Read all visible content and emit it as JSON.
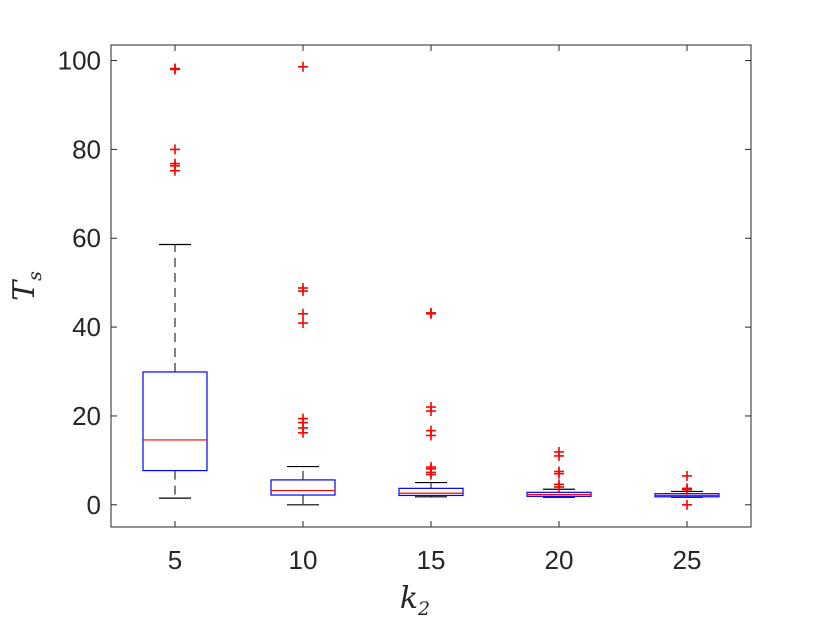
{
  "chart_data": {
    "type": "boxplot",
    "xlabel": {
      "base": "k",
      "sub": "2"
    },
    "ylabel": {
      "base": "T",
      "sub": "s"
    },
    "categories": [
      "5",
      "10",
      "15",
      "20",
      "25"
    ],
    "yticks": [
      "0",
      "20",
      "40",
      "60",
      "80",
      "100"
    ],
    "ylim": [
      -5,
      103.5
    ],
    "grid": false,
    "colors": {
      "box": "#0000ff",
      "median": "#ff0000",
      "whisker": "#000000",
      "outlier": "#ff0000",
      "axis": "#262626"
    },
    "boxes": [
      {
        "category": "5",
        "whisker_low": 1.5,
        "q1": 7.7,
        "median": 14.6,
        "q3": 29.9,
        "whisker_high": 58.6,
        "outliers": [
          75.2,
          76.3,
          76.8,
          80.0,
          98.0,
          98.2
        ]
      },
      {
        "category": "10",
        "whisker_low": 0.0,
        "q1": 2.2,
        "median": 3.2,
        "q3": 5.6,
        "whisker_high": 8.6,
        "outliers": [
          16.2,
          17.3,
          18.5,
          19.4,
          40.9,
          43.0,
          48.1,
          48.8,
          98.6
        ]
      },
      {
        "category": "15",
        "whisker_low": 1.8,
        "q1": 2.1,
        "median": 2.6,
        "q3": 3.7,
        "whisker_high": 5.0,
        "outliers": [
          6.8,
          7.3,
          8.1,
          8.5,
          15.6,
          16.7,
          21.1,
          22.0,
          43.0,
          43.2
        ]
      },
      {
        "category": "20",
        "whisker_low": 1.7,
        "q1": 1.9,
        "median": 2.3,
        "q3": 2.8,
        "whisker_high": 3.5,
        "outliers": [
          4.0,
          4.6,
          7.0,
          7.5,
          11.0,
          11.9
        ]
      },
      {
        "category": "25",
        "whisker_low": 1.7,
        "q1": 1.8,
        "median": 2.1,
        "q3": 2.5,
        "whisker_high": 3.0,
        "outliers": [
          0.0,
          3.4,
          3.7,
          6.5
        ]
      }
    ]
  }
}
